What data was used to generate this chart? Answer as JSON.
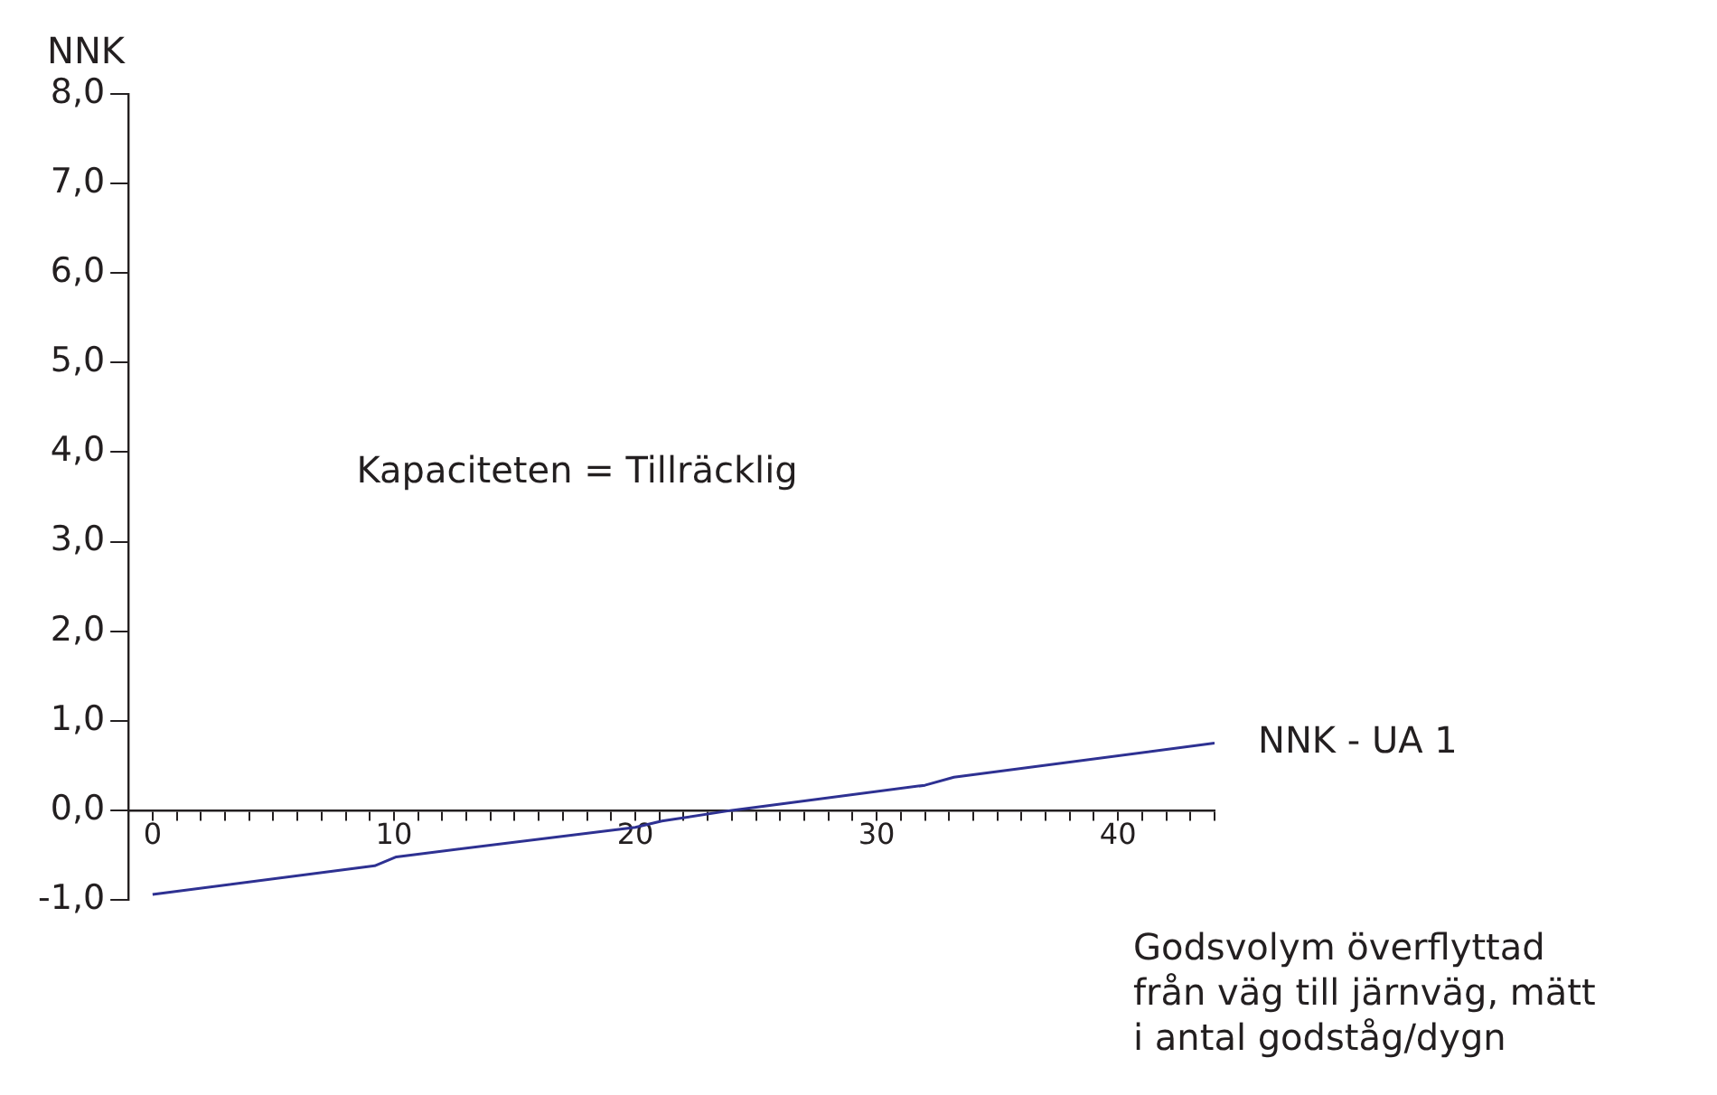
{
  "chart_data": {
    "type": "line",
    "ylabel": "NNK",
    "xlabel": "Godsvolym överflyttad från väg till järnväg, mätt i antal godståg/dygn",
    "annotations": [
      "Kapaciteten = Tillräcklig"
    ],
    "series": [
      {
        "name": "NNK - UA 1",
        "color": "#2e3192",
        "x": [
          0,
          9.2,
          10.1,
          20,
          21.1,
          24,
          32,
          33.2,
          44
        ],
        "values": [
          -0.94,
          -0.62,
          -0.52,
          -0.19,
          -0.12,
          0,
          0.28,
          0.37,
          0.75
        ]
      }
    ],
    "xlim": [
      -1,
      44
    ],
    "xticks": [
      {
        "value": -1,
        "label": null
      },
      {
        "value": 0,
        "label": "0"
      },
      {
        "value": 1,
        "label": null
      },
      {
        "value": 2,
        "label": null
      },
      {
        "value": 3,
        "label": null
      },
      {
        "value": 4,
        "label": null
      },
      {
        "value": 5,
        "label": null
      },
      {
        "value": 6,
        "label": null
      },
      {
        "value": 7,
        "label": null
      },
      {
        "value": 8,
        "label": null
      },
      {
        "value": 9,
        "label": null
      },
      {
        "value": 10,
        "label": "10"
      },
      {
        "value": 11,
        "label": null
      },
      {
        "value": 12,
        "label": null
      },
      {
        "value": 13,
        "label": null
      },
      {
        "value": 14,
        "label": null
      },
      {
        "value": 15,
        "label": null
      },
      {
        "value": 16,
        "label": null
      },
      {
        "value": 17,
        "label": null
      },
      {
        "value": 18,
        "label": null
      },
      {
        "value": 19,
        "label": null
      },
      {
        "value": 20,
        "label": "20"
      },
      {
        "value": 21,
        "label": null
      },
      {
        "value": 22,
        "label": null
      },
      {
        "value": 23,
        "label": null
      },
      {
        "value": 24,
        "label": null
      },
      {
        "value": 25,
        "label": null
      },
      {
        "value": 26,
        "label": null
      },
      {
        "value": 27,
        "label": null
      },
      {
        "value": 28,
        "label": null
      },
      {
        "value": 29,
        "label": null
      },
      {
        "value": 30,
        "label": "30"
      },
      {
        "value": 31,
        "label": null
      },
      {
        "value": 32,
        "label": null
      },
      {
        "value": 33,
        "label": null
      },
      {
        "value": 34,
        "label": null
      },
      {
        "value": 35,
        "label": null
      },
      {
        "value": 36,
        "label": null
      },
      {
        "value": 37,
        "label": null
      },
      {
        "value": 38,
        "label": null
      },
      {
        "value": 39,
        "label": null
      },
      {
        "value": 40,
        "label": "40"
      },
      {
        "value": 41,
        "label": null
      },
      {
        "value": 42,
        "label": null
      },
      {
        "value": 43,
        "label": null
      },
      {
        "value": 44,
        "label": null
      }
    ],
    "ylim": [
      -1,
      8
    ],
    "yticks": [
      {
        "value": -1,
        "label": "-1,0"
      },
      {
        "value": 0,
        "label": "0,0"
      },
      {
        "value": 1,
        "label": "1,0"
      },
      {
        "value": 2,
        "label": "2,0"
      },
      {
        "value": 3,
        "label": "3,0"
      },
      {
        "value": 4,
        "label": "4,0"
      },
      {
        "value": 5,
        "label": "5,0"
      },
      {
        "value": 6,
        "label": "6,0"
      },
      {
        "value": 7,
        "label": "7,0"
      },
      {
        "value": 8,
        "label": "8,0"
      }
    ],
    "grid": false,
    "legend": false,
    "marker": "none",
    "line_style": "solid"
  }
}
